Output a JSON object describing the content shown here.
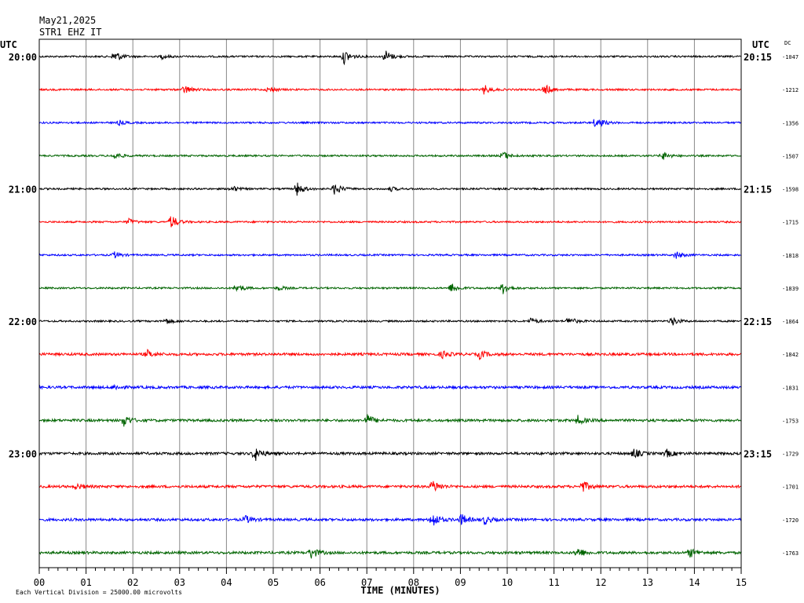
{
  "header": {
    "date": "May21,2025",
    "station": "STR1 EHZ IT"
  },
  "chart_data": {
    "type": "line",
    "title": "May21,2025",
    "subtitle": "STR1 EHZ IT",
    "xlabel": "TIME (MINUTES)",
    "ylabel": "",
    "left_axis_label": "UTC",
    "right_axis_label": "UTC",
    "dc_label": "DC",
    "footer_note": "Each Vertical Division = 25000.00 microvolts",
    "xlim": [
      0,
      15
    ],
    "x_ticks": [
      "00",
      "01",
      "02",
      "03",
      "04",
      "05",
      "06",
      "07",
      "08",
      "09",
      "10",
      "11",
      "12",
      "13",
      "14",
      "15"
    ],
    "grid": true,
    "trace_colors": [
      "#000000",
      "#ff0000",
      "#0000ff",
      "#006400"
    ],
    "traces": [
      {
        "left_label": "20:00",
        "right_label": "20:15",
        "dc": "-1047",
        "color": "#000000",
        "events": [
          [
            1.6,
            9
          ],
          [
            6.5,
            10
          ],
          [
            7.4,
            8
          ],
          [
            2.6,
            3
          ]
        ]
      },
      {
        "left_label": "",
        "right_label": "",
        "dc": "-1212",
        "color": "#ff0000",
        "events": [
          [
            3.1,
            6
          ],
          [
            4.9,
            4
          ],
          [
            9.5,
            6
          ],
          [
            10.8,
            7
          ]
        ]
      },
      {
        "left_label": "",
        "right_label": "",
        "dc": "-1356",
        "color": "#0000ff",
        "events": [
          [
            1.7,
            3
          ],
          [
            11.9,
            9
          ]
        ]
      },
      {
        "left_label": "",
        "right_label": "",
        "dc": "-1507",
        "color": "#006400",
        "events": [
          [
            1.6,
            5
          ],
          [
            9.9,
            6
          ],
          [
            13.3,
            6
          ]
        ]
      },
      {
        "left_label": "21:00",
        "right_label": "21:15",
        "dc": "-1598",
        "color": "#000000",
        "events": [
          [
            4.1,
            4
          ],
          [
            5.5,
            9
          ],
          [
            6.3,
            9
          ],
          [
            7.5,
            3
          ]
        ]
      },
      {
        "left_label": "",
        "right_label": "",
        "dc": "-1715",
        "color": "#ff0000",
        "events": [
          [
            1.9,
            4
          ],
          [
            2.8,
            10
          ]
        ]
      },
      {
        "left_label": "",
        "right_label": "",
        "dc": "-1818",
        "color": "#0000ff",
        "events": [
          [
            1.6,
            4
          ],
          [
            13.6,
            5
          ]
        ]
      },
      {
        "left_label": "",
        "right_label": "",
        "dc": "-1839",
        "color": "#006400",
        "events": [
          [
            4.2,
            6
          ],
          [
            5.1,
            3
          ],
          [
            8.8,
            8
          ],
          [
            9.9,
            8
          ]
        ]
      },
      {
        "left_label": "22:00",
        "right_label": "22:15",
        "dc": "-1864",
        "color": "#000000",
        "events": [
          [
            2.7,
            4
          ],
          [
            10.5,
            4
          ],
          [
            11.3,
            6
          ],
          [
            13.5,
            7
          ]
        ]
      },
      {
        "left_label": "",
        "right_label": "",
        "dc": "-1842",
        "color": "#ff0000",
        "events": [
          [
            2.3,
            5
          ],
          [
            8.6,
            5
          ],
          [
            9.4,
            6
          ]
        ]
      },
      {
        "left_label": "",
        "right_label": "",
        "dc": "-1831",
        "color": "#0000ff",
        "events": [
          [
            1.6,
            3
          ]
        ]
      },
      {
        "left_label": "",
        "right_label": "",
        "dc": "-1753",
        "color": "#006400",
        "events": [
          [
            1.8,
            8
          ],
          [
            7.0,
            8
          ],
          [
            11.5,
            6
          ]
        ]
      },
      {
        "left_label": "23:00",
        "right_label": "23:15",
        "dc": "-1729",
        "color": "#000000",
        "events": [
          [
            4.6,
            10
          ],
          [
            12.7,
            6
          ],
          [
            13.4,
            5
          ]
        ]
      },
      {
        "left_label": "",
        "right_label": "",
        "dc": "-1701",
        "color": "#ff0000",
        "events": [
          [
            0.8,
            4
          ],
          [
            8.4,
            9
          ],
          [
            11.6,
            8
          ]
        ]
      },
      {
        "left_label": "",
        "right_label": "",
        "dc": "-1720",
        "color": "#0000ff",
        "events": [
          [
            4.4,
            5
          ],
          [
            8.4,
            10
          ],
          [
            9.0,
            8
          ],
          [
            9.5,
            6
          ]
        ]
      },
      {
        "left_label": "",
        "right_label": "",
        "dc": "-1763",
        "color": "#006400",
        "events": [
          [
            5.8,
            8
          ],
          [
            11.5,
            7
          ],
          [
            13.9,
            6
          ]
        ]
      }
    ]
  }
}
